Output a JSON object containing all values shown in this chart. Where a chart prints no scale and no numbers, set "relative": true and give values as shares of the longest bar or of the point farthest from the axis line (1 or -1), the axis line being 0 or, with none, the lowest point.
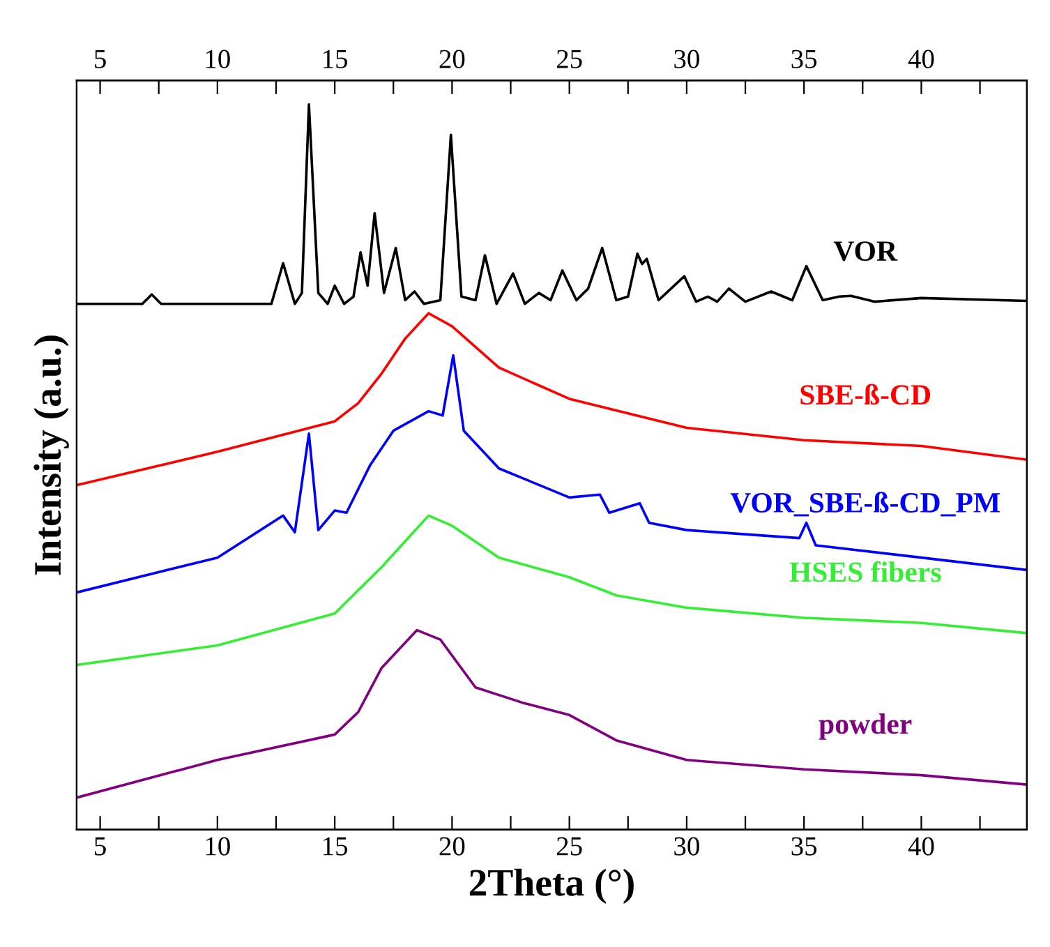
{
  "chart_data": {
    "type": "line",
    "relative": true,
    "xlabel": "2Theta (°)",
    "ylabel": "Intensity (a.u.)",
    "xlim": [
      4,
      44.5
    ],
    "x2lim": [
      4,
      44.5
    ],
    "xticks": [
      5,
      {
        "value": 7.5,
        "label": null
      },
      10,
      {
        "value": 12.5,
        "label": null
      },
      15,
      {
        "value": 17.5,
        "label": null
      },
      20,
      {
        "value": 22.5,
        "label": null
      },
      25,
      {
        "value": 27.5,
        "label": null
      },
      30,
      {
        "value": 32.5,
        "label": null
      },
      35,
      {
        "value": 37.5,
        "label": null
      },
      40,
      {
        "value": 42.5,
        "label": null
      }
    ],
    "x2ticks": [
      5,
      {
        "value": 7.5,
        "label": null
      },
      10,
      {
        "value": 12.5,
        "label": null
      },
      15,
      {
        "value": 17.5,
        "label": null
      },
      20,
      {
        "value": 22.5,
        "label": null
      },
      25,
      {
        "value": 27.5,
        "label": null
      },
      30,
      {
        "value": 32.5,
        "label": null
      },
      35,
      {
        "value": 37.5,
        "label": null
      },
      40,
      {
        "value": 42.5,
        "label": null
      }
    ],
    "tick_labels": "x",
    "legend": false,
    "grid": false,
    "series": [
      {
        "name": "VOR",
        "color": "#000000",
        "x": [
          4,
          6.8,
          7.2,
          7.6,
          12.3,
          12.8,
          13.3,
          13.6,
          13.9,
          14.3,
          14.7,
          15.0,
          15.4,
          15.8,
          16.1,
          16.4,
          16.7,
          17.1,
          17.6,
          18.0,
          18.4,
          18.8,
          19.5,
          19.95,
          20.4,
          21.0,
          21.4,
          21.9,
          22.6,
          23.1,
          23.7,
          24.2,
          24.7,
          25.3,
          25.8,
          26.4,
          27.0,
          27.5,
          27.9,
          28.1,
          28.3,
          28.8,
          29.9,
          30.4,
          30.9,
          31.3,
          31.8,
          32.5,
          33.6,
          34.5,
          35.1,
          35.8,
          36.5,
          37.0,
          38,
          40,
          44.5
        ],
        "values": [
          0.725,
          0.725,
          0.738,
          0.725,
          0.725,
          0.781,
          0.725,
          0.74,
          1.0,
          0.74,
          0.725,
          0.75,
          0.725,
          0.735,
          0.796,
          0.75,
          0.85,
          0.74,
          0.802,
          0.73,
          0.742,
          0.725,
          0.73,
          0.958,
          0.735,
          0.73,
          0.792,
          0.725,
          0.767,
          0.725,
          0.74,
          0.73,
          0.771,
          0.73,
          0.746,
          0.802,
          0.73,
          0.735,
          0.794,
          0.78,
          0.787,
          0.73,
          0.763,
          0.728,
          0.735,
          0.728,
          0.746,
          0.728,
          0.742,
          0.73,
          0.777,
          0.73,
          0.735,
          0.736,
          0.728,
          0.733,
          0.729
        ]
      },
      {
        "name": "SBE-ß-CD",
        "color": "#ff0000",
        "x": [
          4,
          10,
          15,
          16,
          17,
          18,
          19,
          20,
          22,
          25,
          30,
          35,
          40,
          44.5
        ],
        "values": [
          0.475,
          0.521,
          0.563,
          0.588,
          0.629,
          0.677,
          0.712,
          0.694,
          0.637,
          0.594,
          0.554,
          0.537,
          0.529,
          0.51
        ]
      },
      {
        "name": "VOR_SBE-ß-CD_PM",
        "color": "#0000ff",
        "x": [
          4,
          10,
          12.8,
          13.3,
          13.9,
          14.3,
          15,
          15.5,
          16.5,
          17.5,
          19,
          19.6,
          20.05,
          20.5,
          22,
          25,
          26.3,
          26.7,
          28,
          28.4,
          30,
          34.8,
          35.1,
          35.5,
          40,
          44.5
        ],
        "values": [
          0.327,
          0.375,
          0.433,
          0.41,
          0.546,
          0.413,
          0.44,
          0.437,
          0.502,
          0.55,
          0.577,
          0.571,
          0.654,
          0.55,
          0.498,
          0.458,
          0.462,
          0.437,
          0.45,
          0.423,
          0.413,
          0.402,
          0.423,
          0.392,
          0.375,
          0.358
        ]
      },
      {
        "name": "HSES fibers",
        "color": "#33ee33",
        "x": [
          4,
          10,
          15,
          17,
          19,
          20,
          22,
          25,
          27,
          30,
          35,
          40,
          44.5
        ],
        "values": [
          0.227,
          0.254,
          0.298,
          0.362,
          0.433,
          0.419,
          0.375,
          0.348,
          0.323,
          0.306,
          0.292,
          0.285,
          0.271
        ]
      },
      {
        "name": "powder",
        "color": "#800080",
        "x": [
          4,
          10,
          15,
          16,
          17,
          18.5,
          19.5,
          21,
          23,
          25,
          27,
          30,
          35,
          40,
          44.5
        ],
        "values": [
          0.044,
          0.096,
          0.131,
          0.162,
          0.223,
          0.275,
          0.262,
          0.196,
          0.175,
          0.158,
          0.123,
          0.096,
          0.083,
          0.075,
          0.062
        ]
      }
    ]
  }
}
